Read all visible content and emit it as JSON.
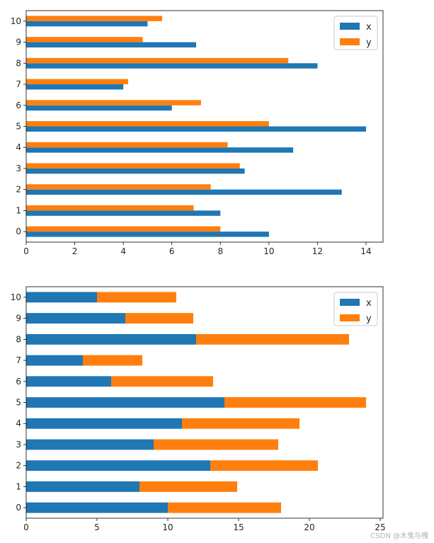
{
  "chart_data": [
    {
      "type": "bar",
      "orientation": "horizontal",
      "stacked": false,
      "categories": [
        "0",
        "1",
        "2",
        "3",
        "4",
        "5",
        "6",
        "7",
        "8",
        "9",
        "10"
      ],
      "series": [
        {
          "name": "x",
          "color": "#1f77b4",
          "values": [
            10,
            8,
            13,
            9,
            11,
            14,
            6,
            4,
            12,
            7,
            5
          ]
        },
        {
          "name": "y",
          "color": "#ff7f0e",
          "values": [
            8.0,
            6.9,
            7.6,
            8.8,
            8.3,
            10.0,
            7.2,
            4.2,
            10.8,
            4.8,
            5.6
          ]
        }
      ],
      "xlim": [
        0,
        14.7
      ],
      "xticks": [
        0,
        2,
        4,
        6,
        8,
        10,
        12,
        14
      ],
      "xtick_labels": [
        "0",
        "2",
        "4",
        "6",
        "8",
        "10",
        "12",
        "14"
      ],
      "legend": "top-right",
      "grid": false
    },
    {
      "type": "bar",
      "orientation": "horizontal",
      "stacked": true,
      "categories": [
        "0",
        "1",
        "2",
        "3",
        "4",
        "5",
        "6",
        "7",
        "8",
        "9",
        "10"
      ],
      "series": [
        {
          "name": "x",
          "color": "#1f77b4",
          "values": [
            10,
            8,
            13,
            9,
            11,
            14,
            6,
            4,
            12,
            7,
            5
          ]
        },
        {
          "name": "y",
          "color": "#ff7f0e",
          "values": [
            8.0,
            6.9,
            7.6,
            8.8,
            8.3,
            10.0,
            7.2,
            4.2,
            10.8,
            4.8,
            5.6
          ]
        }
      ],
      "xlim": [
        0,
        25.2
      ],
      "xticks": [
        0,
        5,
        10,
        15,
        20,
        25
      ],
      "xtick_labels": [
        "0",
        "5",
        "10",
        "15",
        "20",
        "25"
      ],
      "legend": "top-right",
      "grid": false
    }
  ],
  "watermark": "CSDN @木鬼与槐"
}
